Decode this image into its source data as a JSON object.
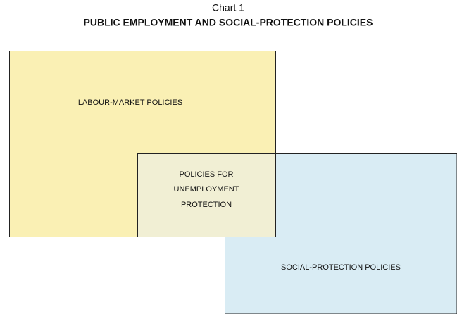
{
  "header": {
    "label": "Chart 1",
    "title": "PUBLIC EMPLOYMENT AND SOCIAL-PROTECTION POLICIES"
  },
  "regions": {
    "labour_market": {
      "label": "LABOUR-MARKET POLICIES"
    },
    "unemployment_protection": {
      "lines": [
        "POLICIES FOR",
        "UNEMPLOYMENT",
        "PROTECTION"
      ]
    },
    "social_protection": {
      "label": "SOCIAL-PROTECTION POLICIES"
    }
  }
}
